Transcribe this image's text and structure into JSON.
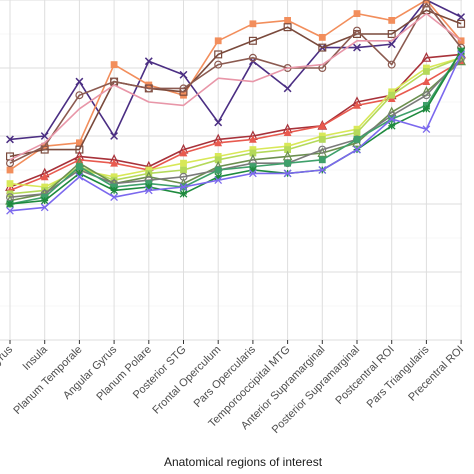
{
  "chart_data": {
    "type": "line",
    "xlabel": "Anatomical regions of interest",
    "ylabel": "",
    "grid": true,
    "categories": [
      "s Gyrus",
      "Insula",
      "Planum Temporale",
      "Angular Gyrus",
      "Planum Polare",
      "Posterior STG",
      "Frontal Operculum",
      "Pars Opercularis",
      "Temporooccipital MTG",
      "Anterior Supramarginal",
      "Posterior Supramarginal",
      "Postcentral ROI",
      "Pars Triangularis",
      "Precentral ROI"
    ],
    "ylim": [
      0,
      10
    ],
    "series": [
      {
        "color": "#4b2e83",
        "marker": "x",
        "values": [
          5.9,
          6.0,
          7.6,
          6.0,
          8.2,
          7.8,
          6.4,
          8.2,
          7.4,
          8.6,
          8.6,
          8.7,
          10.0,
          9.5
        ]
      },
      {
        "color": "#f28e5c",
        "marker": "square",
        "values": [
          5.0,
          5.7,
          5.8,
          8.1,
          7.5,
          7.2,
          8.8,
          9.3,
          9.4,
          8.9,
          9.6,
          9.4,
          10.0,
          8.8
        ]
      },
      {
        "color": "#7a4a3c",
        "marker": "square-open",
        "values": [
          5.4,
          5.6,
          5.6,
          7.6,
          7.4,
          7.3,
          8.4,
          8.8,
          9.2,
          8.6,
          9.0,
          9.0,
          9.7,
          9.3
        ]
      },
      {
        "color": "#8b5a50",
        "marker": "circle-open",
        "values": [
          5.2,
          5.7,
          7.2,
          7.6,
          7.4,
          7.4,
          8.1,
          8.3,
          8.0,
          8.0,
          9.1,
          8.1,
          9.9,
          8.6
        ]
      },
      {
        "color": "#e896a8",
        "marker": "none",
        "values": [
          5.3,
          5.8,
          6.8,
          7.5,
          7.0,
          6.9,
          7.7,
          7.6,
          8.0,
          8.1,
          8.8,
          8.8,
          9.6,
          8.8
        ]
      },
      {
        "color": "#a8323a",
        "marker": "triangle-open",
        "values": [
          4.5,
          4.9,
          5.4,
          5.3,
          5.1,
          5.6,
          5.9,
          6.0,
          6.2,
          6.3,
          7.0,
          7.2,
          8.3,
          8.4
        ]
      },
      {
        "color": "#e85a4f",
        "marker": "triangle",
        "values": [
          4.4,
          4.8,
          5.3,
          5.2,
          5.0,
          5.5,
          5.8,
          5.9,
          6.1,
          6.3,
          6.9,
          7.1,
          7.6,
          8.2
        ]
      },
      {
        "color": "#d8e858",
        "marker": "square",
        "values": [
          4.6,
          4.5,
          5.0,
          4.8,
          5.0,
          5.2,
          5.4,
          5.6,
          5.7,
          6.0,
          6.2,
          7.3,
          8.0,
          8.3
        ]
      },
      {
        "color": "#b4d95a",
        "marker": "square",
        "values": [
          4.3,
          4.4,
          5.1,
          4.7,
          4.9,
          5.0,
          5.3,
          5.5,
          5.6,
          5.9,
          6.1,
          7.2,
          7.9,
          8.3
        ]
      },
      {
        "color": "#6b8f4e",
        "marker": "triangle-open",
        "values": [
          4.1,
          4.3,
          5.2,
          4.6,
          4.8,
          4.6,
          5.1,
          5.3,
          5.4,
          5.5,
          5.8,
          6.7,
          7.3,
          8.2
        ]
      },
      {
        "color": "#7a7a7a",
        "marker": "circle-open",
        "values": [
          4.2,
          4.3,
          5.0,
          4.6,
          4.7,
          4.8,
          5.0,
          5.2,
          5.2,
          5.6,
          5.9,
          6.6,
          7.2,
          8.3
        ]
      },
      {
        "color": "#3fa06b",
        "marker": "square",
        "values": [
          4.0,
          4.2,
          5.1,
          4.5,
          4.6,
          4.5,
          5.0,
          5.1,
          5.2,
          5.3,
          5.9,
          6.5,
          6.9,
          8.5
        ]
      },
      {
        "color": "#1e8a3e",
        "marker": "asterisk",
        "values": [
          4.0,
          4.1,
          4.9,
          4.4,
          4.5,
          4.3,
          4.8,
          5.0,
          4.9,
          5.0,
          5.6,
          6.3,
          6.8,
          8.5
        ]
      },
      {
        "color": "#7b68ee",
        "marker": "cross",
        "values": [
          3.8,
          3.9,
          4.8,
          4.2,
          4.4,
          4.5,
          4.7,
          4.9,
          4.9,
          5.0,
          5.6,
          6.5,
          6.2,
          8.4
        ]
      }
    ]
  }
}
